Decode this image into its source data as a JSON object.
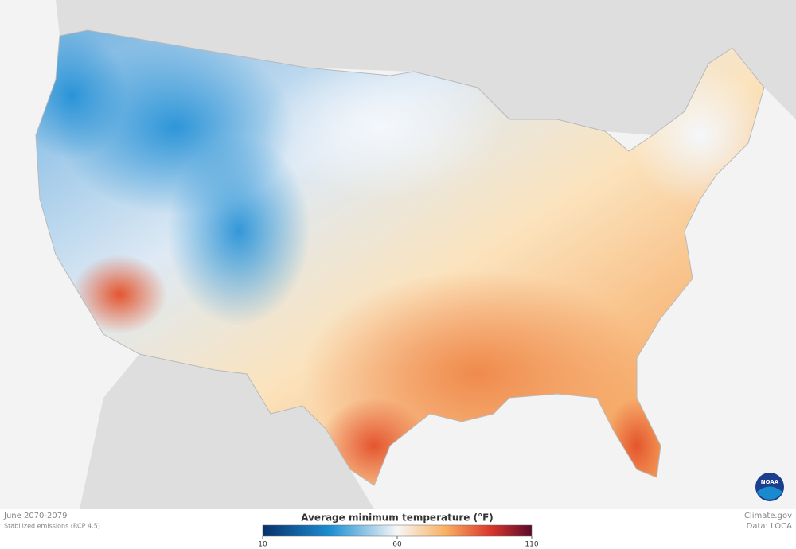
{
  "header": {
    "period": "June 2070-2079",
    "scenario": "Stabilized emissions (RCP 4.5)"
  },
  "legend": {
    "title": "Average minimum temperature (°F)",
    "lim": [
      10,
      110
    ],
    "ticks": [
      10,
      60,
      110
    ]
  },
  "credits": {
    "site": "Climate.gov",
    "source": "Data: LOCA",
    "logo": "NOAA"
  }
}
